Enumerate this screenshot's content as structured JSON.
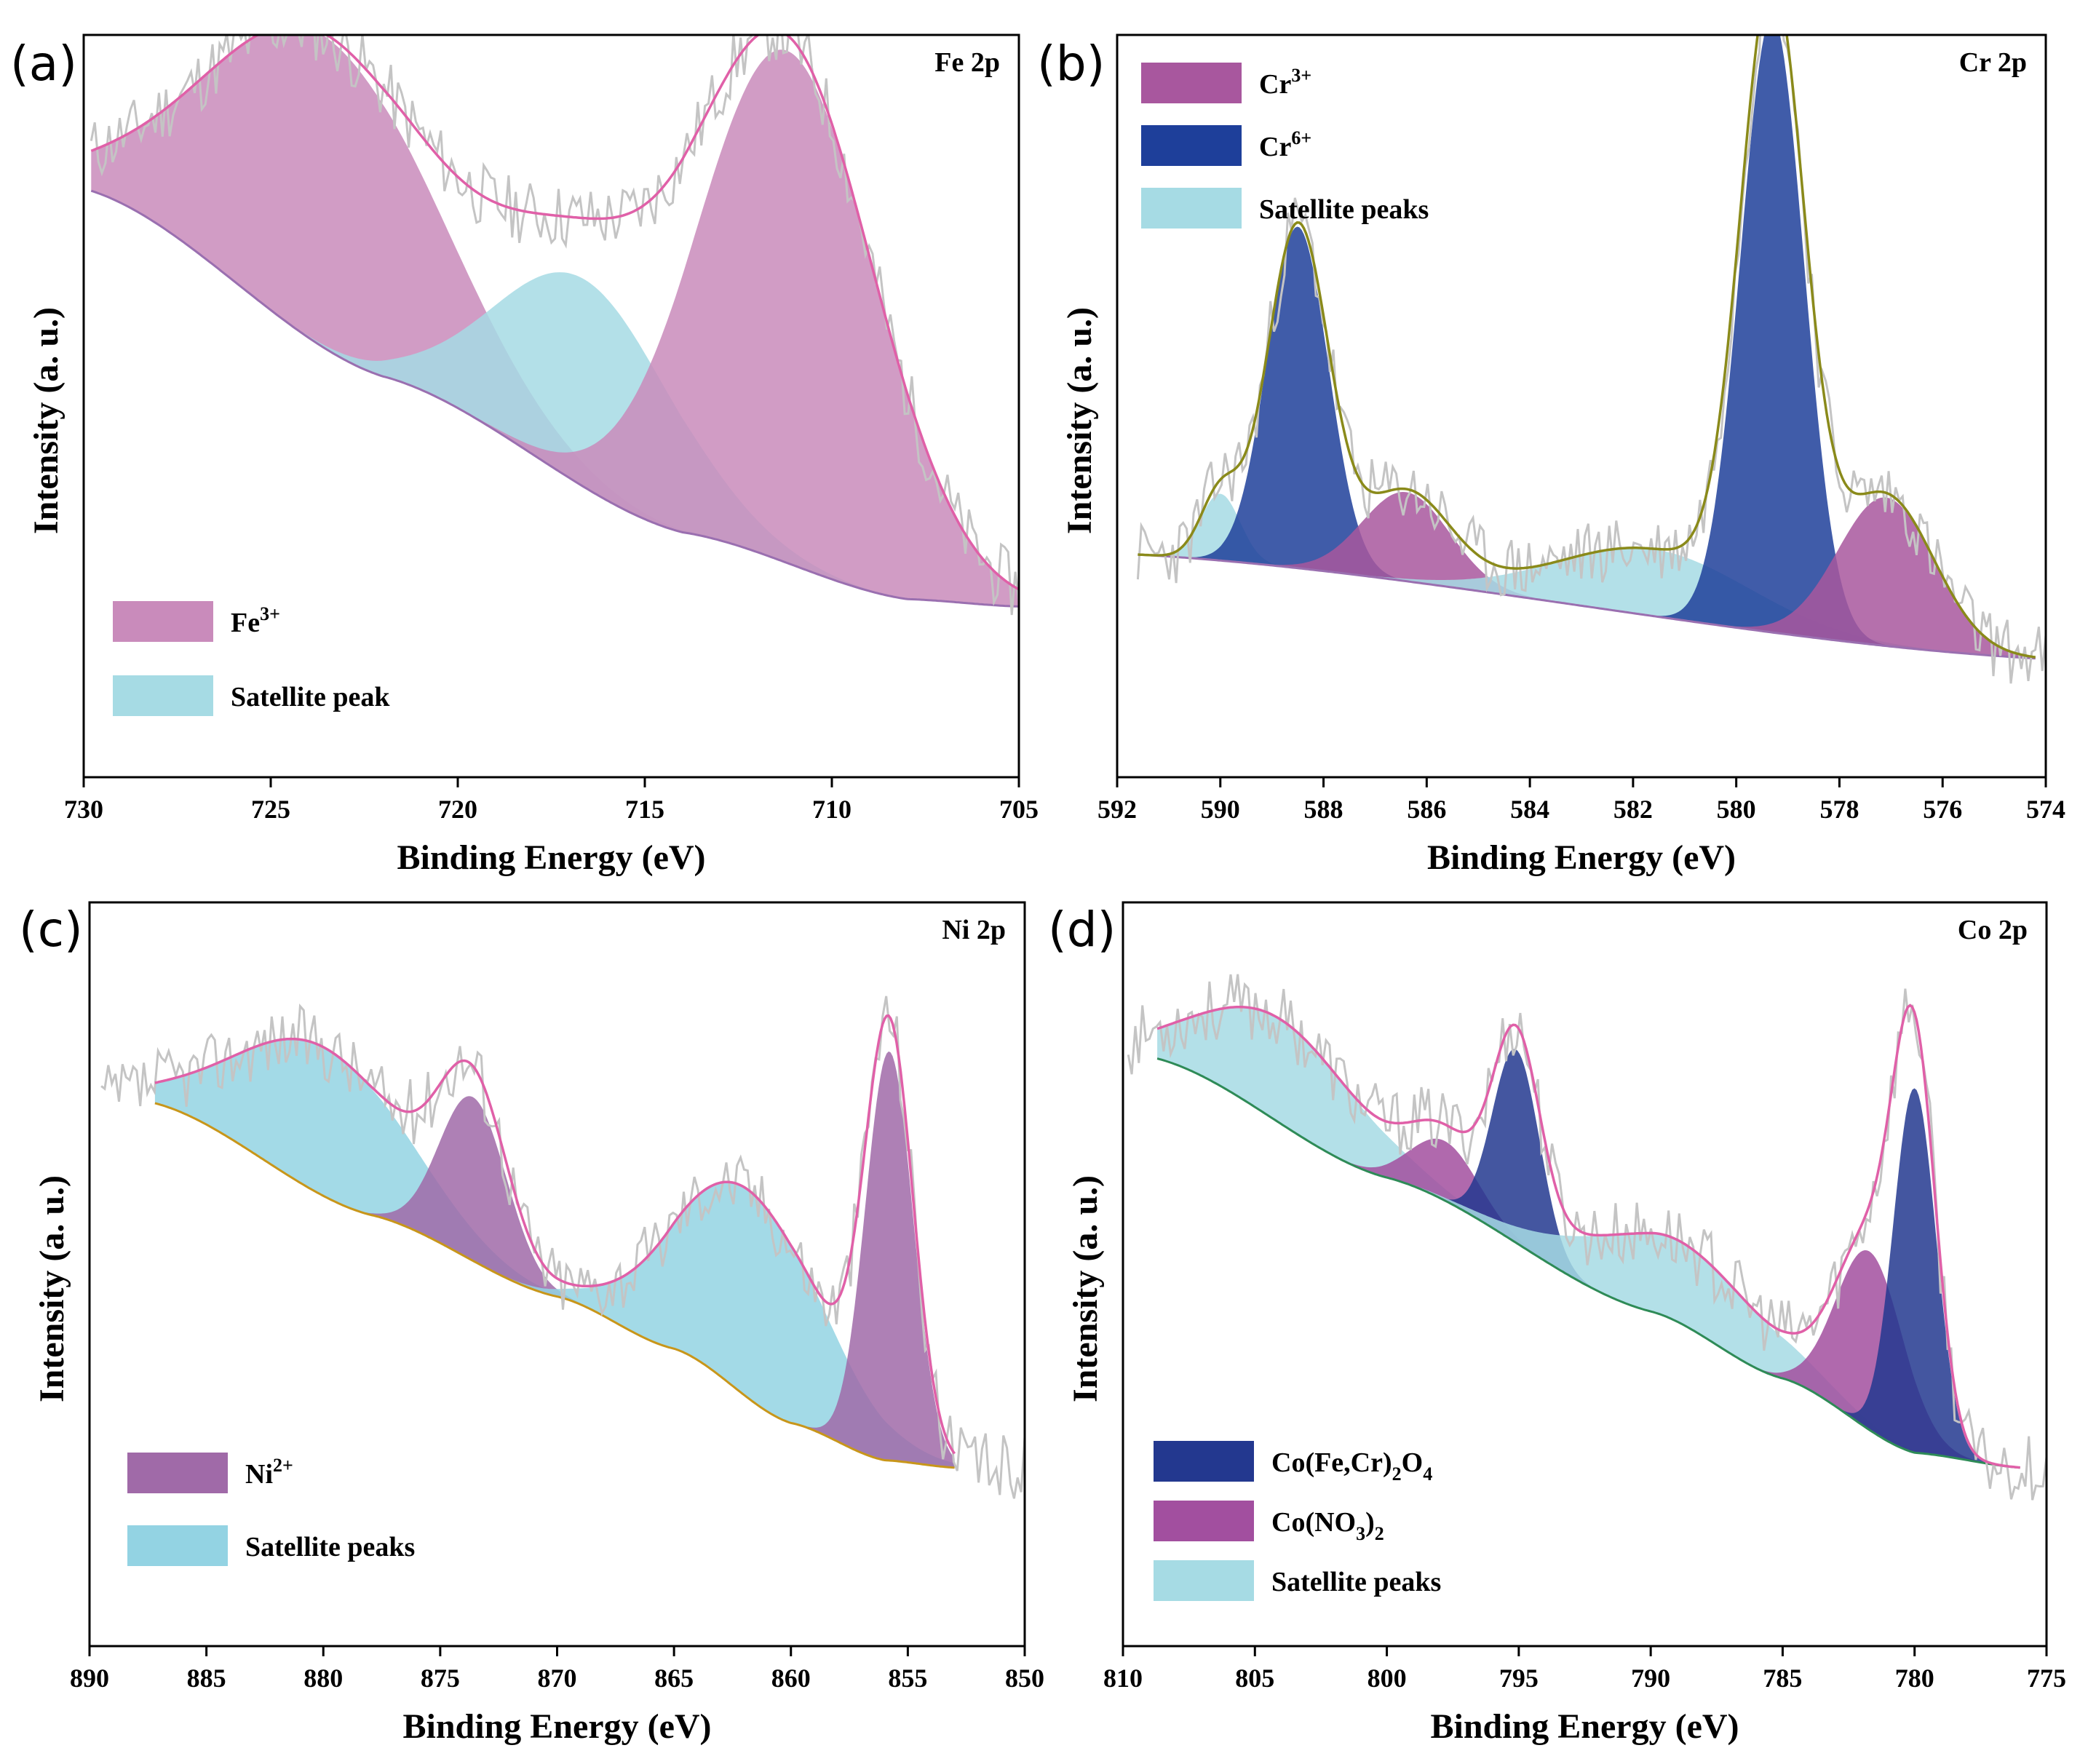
{
  "figure": {
    "axis_xlabel": "Binding Energy (eV)",
    "axis_ylabel": "Intensity (a. u.)"
  },
  "colors": {
    "fe3": "#c98bbb",
    "satellite": "#a6dbe4",
    "cr3": "#a8579e",
    "cr6": "#1e3f9a",
    "ni2": "#a06aa8",
    "ni_sat": "#93d3e3",
    "co_spinel": "#23388f",
    "co_nitrate": "#a24f9f",
    "raw": "#c4c4c4",
    "envelope_pink": "#e060a8",
    "envelope_olive": "#8a8a1a",
    "baseline_gold": "#c8961a",
    "baseline_green": "#2e8b57"
  },
  "chart_data": [
    {
      "id": "a",
      "type": "line",
      "panel_label": "(a)",
      "title": "Fe 2p",
      "xlim": [
        730,
        705
      ],
      "xticks": [
        730,
        725,
        720,
        715,
        710,
        705
      ],
      "ylim": [
        0,
        1
      ],
      "baseline": {
        "x": [
          729.8,
          722,
          714,
          708,
          705
        ],
        "y": [
          0.79,
          0.54,
          0.33,
          0.24,
          0.23
        ]
      },
      "raw_seed": 11,
      "raw_start": 729.8,
      "peaks": [
        {
          "series": "Fe³⁺",
          "color_key": "fe3",
          "center": 723.6,
          "amplitude": 0.42,
          "fwhm": 7.2
        },
        {
          "series": "Satellite peak",
          "color_key": "satellite",
          "center": 716.6,
          "amplitude": 0.28,
          "fwhm": 5.6
        },
        {
          "series": "Fe³⁺",
          "color_key": "fe3",
          "center": 711.2,
          "amplitude": 0.69,
          "fwhm": 5.6
        }
      ],
      "envelope_color_key": "envelope_pink",
      "legend": [
        {
          "label": "Fe",
          "sup": "3+",
          "color_key": "fe3"
        },
        {
          "label": "Satellite peak",
          "color_key": "satellite"
        }
      ]
    },
    {
      "id": "b",
      "type": "line",
      "panel_label": "(b)",
      "title": "Cr 2p",
      "xlim": [
        592,
        574
      ],
      "xticks": [
        592,
        590,
        588,
        586,
        584,
        582,
        580,
        578,
        576,
        574
      ],
      "ylim": [
        0,
        1
      ],
      "baseline": {
        "x": [
          591.6,
          574.2
        ],
        "y": [
          0.3,
          0.16
        ]
      },
      "raw_seed": 23,
      "raw_start": 591.6,
      "peaks": [
        {
          "series": "Satellite peaks",
          "color_key": "satellite",
          "center": 590.0,
          "amplitude": 0.09,
          "fwhm": 0.9
        },
        {
          "series": "Cr⁶⁺",
          "color_key": "cr6",
          "center": 588.5,
          "amplitude": 0.46,
          "fwhm": 1.4
        },
        {
          "series": "Cr³⁺",
          "color_key": "cr3",
          "center": 586.4,
          "amplitude": 0.12,
          "fwhm": 2.0
        },
        {
          "series": "Satellite peaks",
          "color_key": "satellite",
          "center": 581.6,
          "amplitude": 0.09,
          "fwhm": 4.4
        },
        {
          "series": "Cr⁶⁺",
          "color_key": "cr6",
          "center": 579.3,
          "amplitude": 0.83,
          "fwhm": 1.45
        },
        {
          "series": "Cr³⁺",
          "color_key": "cr3",
          "center": 577.1,
          "amplitude": 0.2,
          "fwhm": 2.2
        }
      ],
      "envelope_color_key": "envelope_olive",
      "legend": [
        {
          "label": "Cr",
          "sup": "3+",
          "color_key": "cr3"
        },
        {
          "label": "Cr",
          "sup": "6+",
          "color_key": "cr6"
        },
        {
          "label": "Satellite peaks",
          "color_key": "satellite"
        }
      ]
    },
    {
      "id": "c",
      "type": "line",
      "panel_label": "(c)",
      "title": "Ni 2p",
      "xlim": [
        890,
        850
      ],
      "xticks": [
        890,
        885,
        880,
        875,
        870,
        865,
        860,
        855,
        850
      ],
      "ylim": [
        0,
        1
      ],
      "baseline": {
        "x": [
          887.2,
          878,
          870,
          865,
          860,
          856,
          853
        ],
        "y": [
          0.73,
          0.58,
          0.47,
          0.4,
          0.3,
          0.25,
          0.24
        ]
      },
      "raw_seed": 37,
      "raw_start": 889.5,
      "peaks": [
        {
          "series": "Satellite peaks",
          "color_key": "ni_sat",
          "center": 880.0,
          "amplitude": 0.2,
          "fwhm": 8.5
        },
        {
          "series": "Ni²⁺",
          "color_key": "ni2",
          "center": 873.6,
          "amplitude": 0.22,
          "fwhm": 3.4
        },
        {
          "series": "Satellite peaks",
          "color_key": "ni_sat",
          "center": 861.8,
          "amplitude": 0.28,
          "fwhm": 7.5
        },
        {
          "series": "Ni²⁺",
          "color_key": "ni2",
          "center": 855.8,
          "amplitude": 0.55,
          "fwhm": 2.4
        }
      ],
      "envelope_color_key": "envelope_pink",
      "legend": [
        {
          "label": "Ni",
          "sup": "2+",
          "color_key": "ni2"
        },
        {
          "label": "Satellite peaks",
          "color_key": "ni_sat"
        }
      ]
    },
    {
      "id": "d",
      "type": "line",
      "panel_label": "(d)",
      "title": "Co 2p",
      "xlim": [
        810,
        775
      ],
      "xticks": [
        810,
        805,
        800,
        795,
        790,
        785,
        780,
        775
      ],
      "ylim": [
        0,
        1
      ],
      "baseline": {
        "x": [
          808.7,
          800,
          790,
          785,
          780,
          776
        ],
        "y": [
          0.79,
          0.63,
          0.45,
          0.36,
          0.26,
          0.24
        ]
      },
      "raw_seed": 53,
      "raw_start": 809.8,
      "peaks": [
        {
          "series": "Satellite peaks",
          "color_key": "satellite",
          "center": 804.0,
          "amplitude": 0.14,
          "fwhm": 7.0
        },
        {
          "series": "Co(NO₃)₂",
          "color_key": "co_nitrate",
          "center": 797.8,
          "amplitude": 0.08,
          "fwhm": 3.0
        },
        {
          "series": "Co(Fe,Cr)₂O₄",
          "color_key": "co_spinel",
          "center": 795.1,
          "amplitude": 0.26,
          "fwhm": 2.1
        },
        {
          "series": "Satellite peaks",
          "color_key": "satellite",
          "center": 789.0,
          "amplitude": 0.11,
          "fwhm": 8.0
        },
        {
          "series": "Co(NO₃)₂",
          "color_key": "co_nitrate",
          "center": 781.7,
          "amplitude": 0.24,
          "fwhm": 3.0
        },
        {
          "series": "Co(Fe,Cr)₂O₄",
          "color_key": "co_spinel",
          "center": 780.0,
          "amplitude": 0.49,
          "fwhm": 1.9
        }
      ],
      "envelope_color_key": "envelope_pink",
      "legend": [
        {
          "label": "Co(Fe,Cr)",
          "sub": "2",
          "tail": "O",
          "sub2": "4",
          "color_key": "co_spinel"
        },
        {
          "label": "Co(NO",
          "sub": "3",
          "tail": ")",
          "sub2": "2",
          "color_key": "co_nitrate"
        },
        {
          "label": "Satellite peaks",
          "color_key": "satellite"
        }
      ]
    }
  ]
}
